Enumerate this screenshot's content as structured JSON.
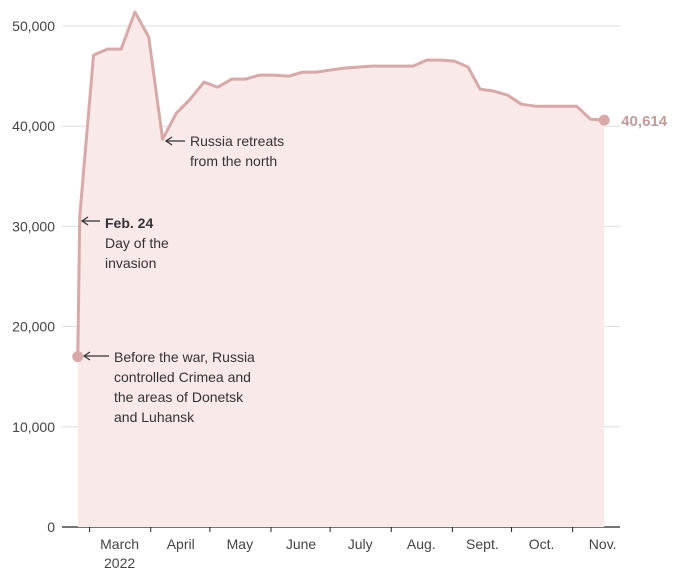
{
  "chart_data": {
    "type": "area",
    "x": [
      54,
      55,
      62,
      69,
      76,
      83,
      90,
      97,
      104,
      111,
      118,
      125,
      132,
      139,
      146,
      153,
      161,
      168,
      175,
      182,
      189,
      196,
      203,
      210,
      218,
      224,
      231,
      238,
      245,
      252,
      258,
      265,
      272,
      279,
      286,
      293,
      300,
      307,
      314,
      321
    ],
    "series": [
      {
        "color": "#d9a9a9",
        "values": [
          17000,
          31000,
          47100,
          47700,
          47700,
          51400,
          48900,
          38700,
          41300,
          42700,
          44400,
          43900,
          44700,
          44700,
          45100,
          45100,
          45000,
          45400,
          45400,
          45600,
          45800,
          45900,
          46000,
          46000,
          46000,
          46000,
          46600,
          46600,
          46500,
          45900,
          43700,
          43500,
          43100,
          42200,
          42000,
          42000,
          42000,
          42000,
          40700,
          40614
        ],
        "value_labels": [
          null,
          null,
          null,
          null,
          null,
          null,
          null,
          null,
          null,
          null,
          null,
          null,
          null,
          null,
          null,
          null,
          null,
          null,
          null,
          null,
          null,
          null,
          null,
          null,
          null,
          null,
          null,
          null,
          null,
          null,
          null,
          null,
          null,
          null,
          null,
          null,
          null,
          null,
          null,
          "40,614"
        ]
      }
    ],
    "xlim": [
      46,
      329
    ],
    "xticks": [
      {
        "value": 60,
        "label": "March"
      },
      {
        "value": 91,
        "label": "April"
      },
      {
        "value": 121,
        "label": "May"
      },
      {
        "value": 152,
        "label": "June"
      },
      {
        "value": 182,
        "label": "July"
      },
      {
        "value": 213,
        "label": "Aug."
      },
      {
        "value": 244,
        "label": "Sept."
      },
      {
        "value": 274,
        "label": "Oct."
      },
      {
        "value": 305,
        "label": "Nov."
      }
    ],
    "x_year_label": "2022",
    "ylim": [
      0,
      52000
    ],
    "yticks": [
      0,
      {
        "value": 10000,
        "label": "10,000"
      },
      {
        "value": 20000,
        "label": "20,000"
      },
      {
        "value": 30000,
        "label": "30,000"
      },
      {
        "value": 40000,
        "label": "40,000"
      },
      {
        "value": 50000,
        "label": "50,000"
      }
    ],
    "grid": true,
    "annotations": [
      {
        "lines": [
          "Russia retreats",
          "from the north"
        ]
      },
      {
        "title": "Feb. 24",
        "lines": [
          "Day of the",
          "invasion"
        ]
      },
      {
        "lines": [
          "Before the war, Russia",
          "controlled Crimea and",
          "the areas of Donetsk",
          "and Luhansk"
        ]
      }
    ]
  }
}
